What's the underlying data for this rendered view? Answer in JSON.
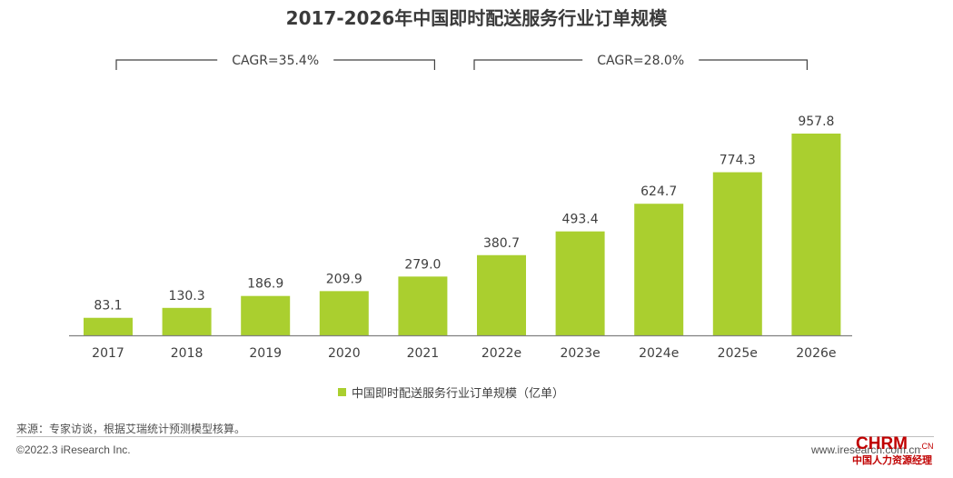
{
  "title": "2017-2026年中国即时配送服务行业订单规模",
  "cagr": [
    {
      "label": "CAGR=35.4%",
      "from": "2017",
      "to": "2021"
    },
    {
      "label": "CAGR=28.0%",
      "from": "2022e",
      "to": "2026e"
    }
  ],
  "legend": {
    "label": "中国即时配送服务行业订单规模（亿单）",
    "color": "#aacf2f"
  },
  "source": "来源：专家访谈，根据艾瑞统计预测模型核算。",
  "copyright": "©2022.3 iResearch Inc.",
  "website": "www.iresearch.com.cn",
  "watermark": {
    "main": "CHRM",
    "suffix": ".CN",
    "sub": "中国人力资源经理"
  },
  "chart_data": {
    "type": "bar",
    "categories": [
      "2017",
      "2018",
      "2019",
      "2020",
      "2021",
      "2022e",
      "2023e",
      "2024e",
      "2025e",
      "2026e"
    ],
    "series": [
      {
        "name": "中国即时配送服务行业订单规模（亿单）",
        "values": [
          83.1,
          130.3,
          186.9,
          209.9,
          279.0,
          380.7,
          493.4,
          624.7,
          774.3,
          957.8
        ]
      }
    ],
    "value_labels": [
      "83.1",
      "130.3",
      "186.9",
      "209.9",
      "279.0",
      "380.7",
      "493.4",
      "624.7",
      "774.3",
      "957.8"
    ],
    "title": "2017-2026年中国即时配送服务行业订单规模",
    "xlabel": "",
    "ylabel": "",
    "ylim": [
      0,
      1000
    ],
    "grid": false,
    "legend_position": "bottom",
    "bar_color": "#aacf2f"
  }
}
